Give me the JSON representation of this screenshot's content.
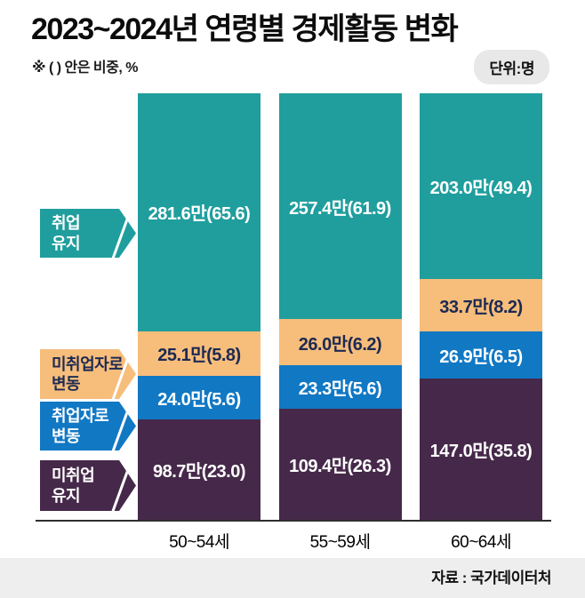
{
  "header": {
    "title": "2023~2024년 연령별 경제활동 변화",
    "note": "※ ( ) 안은 비중, %",
    "unit_badge": "단위:명"
  },
  "footer": {
    "source": "자료 : 국가데이터처"
  },
  "chart_data": {
    "type": "bar",
    "stacked": true,
    "stacked_100_percent": true,
    "title": "2023~2024년 연령별 경제활동 변화",
    "unit": "명",
    "note": "괄호 안은 비중, %",
    "legend_position": "left",
    "categories": [
      "50~54세",
      "55~59세",
      "60~64세"
    ],
    "series": [
      {
        "name": "취업 유지",
        "name_lines": [
          "취업",
          "유지"
        ],
        "color": "#209e9e",
        "text_color": "#ffffff",
        "values_man": [
          281.6,
          257.4,
          203.0
        ],
        "pct": [
          65.6,
          61.9,
          49.4
        ],
        "labels": [
          "281.6만(65.6)",
          "257.4만(61.9)",
          "203.0만(49.4)"
        ]
      },
      {
        "name": "미취업자로 변동",
        "name_lines": [
          "미취업자로",
          "변동"
        ],
        "color": "#f7bd7b",
        "text_color": "#1c2a52",
        "values_man": [
          25.1,
          26.0,
          33.7
        ],
        "pct": [
          5.8,
          6.2,
          8.2
        ],
        "labels": [
          "25.1만(5.8)",
          "26.0만(6.2)",
          "33.7만(8.2)"
        ]
      },
      {
        "name": "취업자로 변동",
        "name_lines": [
          "취업자로",
          "변동"
        ],
        "color": "#1178c4",
        "text_color": "#ffffff",
        "values_man": [
          24.0,
          23.3,
          26.9
        ],
        "pct": [
          5.6,
          5.6,
          6.5
        ],
        "labels": [
          "24.0만(5.6)",
          "23.3만(5.6)",
          "26.9만(6.5)"
        ]
      },
      {
        "name": "미취업 유지",
        "name_lines": [
          "미취업",
          "유지"
        ],
        "color": "#46294a",
        "text_color": "#ffffff",
        "values_man": [
          98.7,
          109.4,
          147.0
        ],
        "pct": [
          23.0,
          26.3,
          35.8
        ],
        "labels": [
          "98.7만(23.0)",
          "109.4만(26.3)",
          "147.0만(35.8)"
        ]
      }
    ]
  }
}
